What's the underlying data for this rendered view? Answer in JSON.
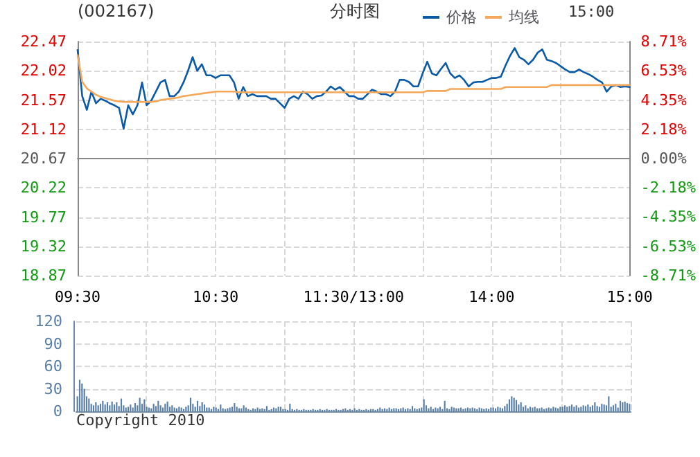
{
  "chart_data": [
    {
      "type": "line",
      "title": "(002167)",
      "subtitle": "分时图",
      "annotations": [
        "15:00"
      ],
      "categories": [
        "09:30",
        null,
        null,
        null,
        null,
        null,
        null,
        null,
        null,
        null,
        null,
        null,
        null,
        null,
        null,
        null,
        null,
        null,
        null,
        null,
        null,
        null,
        null,
        null,
        null,
        null,
        null,
        null,
        null,
        null,
        "10:30",
        null,
        null,
        null,
        null,
        null,
        null,
        null,
        null,
        null,
        null,
        null,
        null,
        null,
        null,
        null,
        null,
        null,
        null,
        null,
        null,
        null,
        null,
        null,
        null,
        null,
        null,
        null,
        null,
        null,
        "11:30/13:00",
        null,
        null,
        null,
        null,
        null,
        null,
        null,
        null,
        null,
        null,
        null,
        null,
        null,
        null,
        null,
        null,
        null,
        null,
        null,
        null,
        null,
        null,
        null,
        null,
        null,
        null,
        null,
        null,
        null,
        "14:00",
        null,
        null,
        null,
        null,
        null,
        null,
        null,
        null,
        null,
        null,
        null,
        null,
        null,
        null,
        null,
        null,
        null,
        null,
        null,
        null,
        null,
        null,
        null,
        null,
        null,
        null,
        null,
        null,
        null,
        "15:00"
      ],
      "ylim": [
        18.87,
        22.47
      ],
      "yticks": [
        18.87,
        19.32,
        19.77,
        20.22,
        20.67,
        21.12,
        21.57,
        22.02,
        22.47
      ],
      "y2lim": [
        -8.71,
        8.71
      ],
      "y2ticks": [
        {
          "value": -8.71,
          "label": "-8.71%"
        },
        {
          "value": -6.53,
          "label": "-6.53%"
        },
        {
          "value": -4.35,
          "label": "-4.35%"
        },
        {
          "value": -2.18,
          "label": "-2.18%"
        },
        {
          "value": 0,
          "label": "0.00%"
        },
        {
          "value": 2.18,
          "label": "2.18%"
        },
        {
          "value": 4.35,
          "label": "4.35%"
        },
        {
          "value": 6.53,
          "label": "6.53%"
        },
        {
          "value": 8.71,
          "label": "8.71%"
        }
      ],
      "grid": true,
      "legend": "top",
      "marker": "none",
      "line_style": "solid",
      "series": [
        {
          "name": "价格",
          "color": "#0a5aa8",
          "values": [
            22.34,
            21.63,
            21.42,
            21.7,
            21.52,
            21.59,
            21.56,
            21.52,
            21.49,
            21.45,
            21.13,
            21.49,
            21.35,
            21.49,
            21.84,
            21.49,
            21.56,
            21.7,
            21.84,
            21.88,
            21.63,
            21.63,
            21.7,
            21.84,
            22.02,
            22.23,
            22.02,
            22.12,
            21.95,
            21.95,
            21.91,
            21.95,
            21.95,
            21.95,
            21.84,
            21.59,
            21.77,
            21.63,
            21.66,
            21.63,
            21.63,
            21.63,
            21.59,
            21.59,
            21.52,
            21.45,
            21.59,
            21.63,
            21.59,
            21.7,
            21.66,
            21.59,
            21.63,
            21.64,
            21.7,
            21.78,
            21.73,
            21.77,
            21.7,
            21.63,
            21.63,
            21.59,
            21.59,
            21.66,
            21.73,
            21.7,
            21.66,
            21.66,
            21.63,
            21.7,
            21.88,
            21.88,
            21.85,
            21.78,
            21.78,
            21.98,
            22.16,
            21.98,
            21.95,
            22.05,
            22.14,
            21.98,
            21.91,
            21.95,
            21.88,
            21.78,
            21.84,
            21.85,
            21.85,
            21.88,
            21.91,
            21.91,
            21.93,
            22.1,
            22.25,
            22.37,
            22.23,
            22.19,
            22.12,
            22.19,
            22.3,
            22.35,
            22.19,
            22.17,
            22.14,
            22.09,
            22.04,
            22.0,
            22.0,
            22.04,
            22.0,
            21.97,
            21.93,
            21.88,
            21.84,
            21.7,
            21.78,
            21.8,
            21.77,
            21.78,
            21.77
          ]
        },
        {
          "name": "均线",
          "color": "#f5a85a",
          "values": [
            22.26,
            21.85,
            21.75,
            21.7,
            21.65,
            21.62,
            21.6,
            21.58,
            21.56,
            21.55,
            21.54,
            21.54,
            21.54,
            21.54,
            21.54,
            21.54,
            21.54,
            21.55,
            21.57,
            21.58,
            21.59,
            21.6,
            21.61,
            21.63,
            21.64,
            21.65,
            21.66,
            21.67,
            21.68,
            21.69,
            21.7,
            21.7,
            21.7,
            21.7,
            21.7,
            21.69,
            21.69,
            21.69,
            21.69,
            21.69,
            21.69,
            21.69,
            21.69,
            21.69,
            21.69,
            21.69,
            21.69,
            21.69,
            21.69,
            21.69,
            21.69,
            21.69,
            21.69,
            21.69,
            21.69,
            21.69,
            21.69,
            21.69,
            21.69,
            21.69,
            21.69,
            21.69,
            21.69,
            21.69,
            21.69,
            21.69,
            21.69,
            21.69,
            21.69,
            21.69,
            21.69,
            21.69,
            21.69,
            21.69,
            21.69,
            21.69,
            21.71,
            21.71,
            21.71,
            21.71,
            21.71,
            21.74,
            21.74,
            21.74,
            21.74,
            21.74,
            21.74,
            21.74,
            21.74,
            21.74,
            21.74,
            21.74,
            21.74,
            21.77,
            21.77,
            21.77,
            21.77,
            21.77,
            21.77,
            21.77,
            21.77,
            21.77,
            21.77,
            21.8,
            21.8,
            21.8,
            21.8,
            21.8,
            21.8,
            21.8,
            21.8,
            21.8,
            21.8,
            21.8,
            21.8,
            21.8,
            21.8,
            21.8,
            21.8,
            21.8,
            21.8
          ]
        }
      ]
    },
    {
      "type": "bar",
      "annotations": [
        "Copyright 2010"
      ],
      "tick_labels": "y",
      "grid": true,
      "legend": false,
      "ylim": [
        0,
        120
      ],
      "yticks": [
        0,
        30,
        60,
        90,
        120
      ],
      "categories": [
        null,
        null,
        null,
        null,
        null,
        null,
        null,
        null,
        null,
        null,
        null,
        null,
        null,
        null,
        null,
        null,
        null,
        null,
        null,
        null,
        null,
        null,
        null,
        null,
        null,
        null,
        null,
        null,
        null,
        null,
        null,
        null,
        null,
        null,
        null,
        null,
        null,
        null,
        null,
        null,
        null,
        null,
        null,
        null,
        null,
        null,
        null,
        null,
        null,
        null,
        null,
        null,
        null,
        null,
        null,
        null,
        null,
        null,
        null,
        null,
        null,
        null,
        null,
        null,
        null,
        null,
        null,
        null,
        null,
        null,
        null,
        null,
        null,
        null,
        null,
        null,
        null,
        null,
        null,
        null,
        null,
        null,
        null,
        null,
        null,
        null,
        null,
        null,
        null,
        null,
        null,
        null,
        null,
        null,
        null,
        null,
        null,
        null,
        null,
        null,
        null,
        null,
        null,
        null,
        null,
        null,
        null,
        null,
        null,
        null,
        null,
        null,
        null,
        null,
        null,
        null,
        null,
        null,
        null,
        null,
        null,
        null,
        null,
        null,
        null,
        null,
        null,
        null,
        null,
        null,
        null,
        null,
        null,
        null,
        null,
        null,
        null,
        null,
        null,
        null,
        null,
        null,
        null,
        null,
        null,
        null,
        null,
        null,
        null,
        null,
        null,
        null,
        null,
        null,
        null,
        null,
        null,
        null,
        null,
        null,
        null,
        null,
        null,
        null,
        null,
        null,
        null,
        null,
        null,
        null,
        null,
        null,
        null,
        null,
        null,
        null,
        null,
        null,
        null,
        null,
        null,
        null,
        null,
        null,
        null,
        null,
        null,
        null,
        null,
        null,
        null,
        null,
        null,
        null,
        null,
        null,
        null,
        null,
        null,
        null,
        null,
        null,
        null,
        null,
        null,
        null,
        null,
        null,
        null,
        null,
        null,
        null,
        null,
        null,
        null,
        null,
        null,
        null,
        null,
        null,
        null,
        null,
        null,
        null,
        null,
        null,
        null,
        null,
        null,
        null,
        null,
        null,
        null,
        null,
        null,
        null,
        null,
        null,
        null,
        null
      ],
      "series": [
        {
          "color": "#5a7fa8",
          "values": [
            20,
            42,
            37,
            30,
            20,
            17,
            10,
            8,
            12,
            8,
            10,
            14,
            9,
            12,
            8,
            13,
            9,
            12,
            7,
            17,
            8,
            5,
            6,
            9,
            5,
            11,
            8,
            18,
            10,
            16,
            6,
            5,
            4,
            10,
            7,
            14,
            8,
            5,
            10,
            13,
            6,
            8,
            5,
            4,
            6,
            5,
            3,
            6,
            8,
            18,
            10,
            6,
            14,
            7,
            12,
            9,
            5,
            5,
            3,
            6,
            5,
            3,
            9,
            4,
            3,
            4,
            5,
            6,
            11,
            6,
            4,
            4,
            8,
            5,
            3,
            2,
            4,
            3,
            5,
            3,
            4,
            3,
            7,
            2,
            3,
            5,
            4,
            6,
            6,
            3,
            3,
            2,
            10,
            3,
            2,
            3,
            2,
            2,
            3,
            2,
            2,
            2,
            3,
            2,
            2,
            3,
            2,
            2,
            3,
            2,
            2,
            2,
            3,
            2,
            2,
            3,
            4,
            2,
            3,
            2,
            4,
            2,
            3,
            2,
            2,
            3,
            2,
            3,
            3,
            2,
            3,
            5,
            3,
            4,
            3,
            5,
            3,
            4,
            4,
            3,
            4,
            5,
            3,
            4,
            3,
            7,
            4,
            3,
            4,
            5,
            16,
            8,
            4,
            6,
            3,
            5,
            4,
            6,
            3,
            14,
            4,
            3,
            6,
            5,
            4,
            4,
            5,
            3,
            4,
            5,
            4,
            5,
            4,
            3,
            5,
            4,
            3,
            4,
            3,
            5,
            5,
            4,
            6,
            5,
            4,
            7,
            10,
            16,
            20,
            18,
            15,
            9,
            12,
            6,
            8,
            4,
            6,
            5,
            6,
            4,
            4,
            5,
            3,
            4,
            5,
            4,
            6,
            5,
            4,
            6,
            6,
            8,
            6,
            7,
            9,
            6,
            8,
            5,
            6,
            8,
            7,
            9,
            6,
            8,
            12,
            7,
            6,
            10,
            9,
            8,
            20,
            6,
            8,
            10,
            5,
            14,
            12,
            13,
            11,
            10
          ]
        }
      ]
    }
  ]
}
